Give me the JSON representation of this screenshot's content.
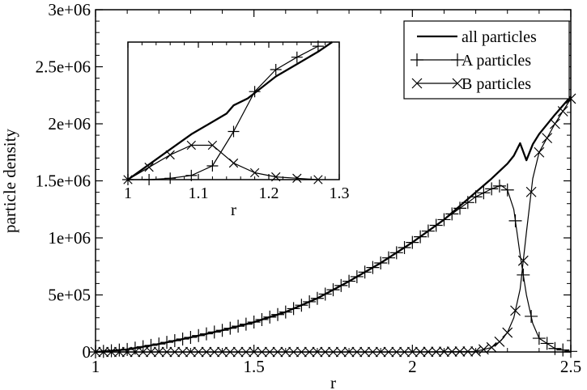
{
  "chart_data": [
    {
      "panel": "main",
      "type": "line",
      "xlabel": "r",
      "ylabel": "particle density",
      "xlim": [
        1,
        2.5
      ],
      "ylim": [
        0,
        3000000
      ],
      "xticks": [
        1,
        1.5,
        2,
        2.5
      ],
      "xtick_labels": [
        "1",
        "1.5",
        "2",
        "2.5"
      ],
      "yticks": [
        0,
        500000,
        1000000,
        1500000,
        2000000,
        2500000,
        3000000
      ],
      "ytick_labels": [
        "0",
        "5e+05",
        "1e+06",
        "1.5e+06",
        "2e+06",
        "2.5e+06",
        "3e+06"
      ],
      "grid": false,
      "legend_position": "top-right",
      "series": [
        {
          "name": "all particles",
          "marker": "none",
          "x": [
            1.0,
            1.1,
            1.2,
            1.3,
            1.4,
            1.5,
            1.6,
            1.7,
            1.8,
            1.9,
            2.0,
            2.1,
            2.2,
            2.25,
            2.3,
            2.32,
            2.34,
            2.36,
            2.38,
            2.4,
            2.45,
            2.5
          ],
          "y": [
            0,
            22000,
            70000,
            128000,
            190000,
            262000,
            350000,
            470000,
            620000,
            780000,
            960000,
            1160000,
            1400000,
            1520000,
            1650000,
            1720000,
            1830000,
            1680000,
            1820000,
            1910000,
            2080000,
            2240000
          ]
        },
        {
          "name": "A particles",
          "marker": "plus",
          "x": [
            1.0,
            1.1,
            1.2,
            1.3,
            1.4,
            1.5,
            1.6,
            1.7,
            1.8,
            1.9,
            2.0,
            2.1,
            2.2,
            2.25,
            2.28,
            2.3,
            2.32,
            2.34,
            2.36,
            2.38,
            2.4,
            2.45,
            2.5
          ],
          "y": [
            0,
            22000,
            70000,
            128000,
            190000,
            262000,
            350000,
            470000,
            620000,
            780000,
            960000,
            1160000,
            1360000,
            1430000,
            1460000,
            1420000,
            1250000,
            850000,
            500000,
            250000,
            120000,
            30000,
            5000
          ]
        },
        {
          "name": "B particles",
          "marker": "cross",
          "x": [
            1.0,
            1.5,
            2.0,
            2.2,
            2.25,
            2.28,
            2.3,
            2.32,
            2.34,
            2.36,
            2.38,
            2.4,
            2.45,
            2.5
          ],
          "y": [
            0,
            0,
            0,
            5000,
            40000,
            100000,
            170000,
            300000,
            550000,
            1050000,
            1520000,
            1750000,
            2000000,
            2220000
          ]
        }
      ]
    },
    {
      "panel": "inset",
      "type": "line",
      "xlabel": "r",
      "ylabel": "",
      "xlim": [
        1,
        1.3
      ],
      "ylim": [
        0,
        1
      ],
      "xticks": [
        1,
        1.1,
        1.2,
        1.3
      ],
      "xtick_labels": [
        "1",
        "1.1",
        "1.2",
        "1.3"
      ],
      "yticks": [],
      "grid": false,
      "series": [
        {
          "name": "all particles",
          "marker": "none",
          "x": [
            1.0,
            1.03,
            1.06,
            1.09,
            1.12,
            1.14,
            1.15,
            1.17,
            1.19,
            1.21,
            1.24,
            1.27,
            1.29
          ],
          "y": [
            0.0,
            0.11,
            0.22,
            0.33,
            0.42,
            0.48,
            0.54,
            0.59,
            0.67,
            0.75,
            0.84,
            0.93,
            1.0
          ]
        },
        {
          "name": "A particles",
          "marker": "plus",
          "x": [
            1.0,
            1.03,
            1.06,
            1.09,
            1.12,
            1.15,
            1.18,
            1.21,
            1.24,
            1.27
          ],
          "y": [
            0.0,
            0.0,
            0.01,
            0.03,
            0.1,
            0.35,
            0.64,
            0.8,
            0.89,
            0.97
          ]
        },
        {
          "name": "B particles",
          "marker": "cross",
          "x": [
            1.0,
            1.03,
            1.06,
            1.09,
            1.12,
            1.15,
            1.18,
            1.21,
            1.24,
            1.27
          ],
          "y": [
            0.0,
            0.09,
            0.18,
            0.25,
            0.25,
            0.12,
            0.05,
            0.02,
            0.01,
            0.0
          ]
        }
      ]
    }
  ]
}
